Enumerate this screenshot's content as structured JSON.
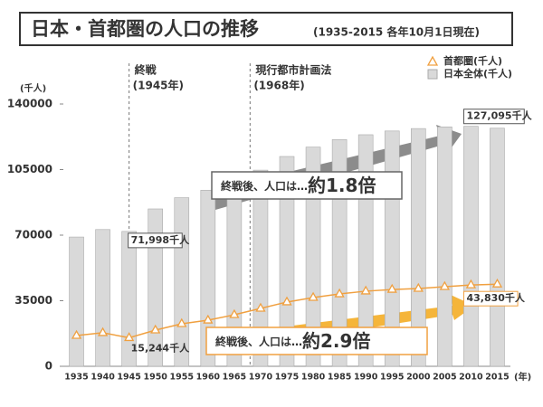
{
  "chart_data": {
    "type": "bar-line",
    "title": "日本・首都圏の人口の推移",
    "subtitle": "(1935-2015 各年10月1日現在)",
    "y_unit": "(千人)",
    "x_unit": "(年)",
    "categories": [
      "1935",
      "1940",
      "1945",
      "1950",
      "1955",
      "1960",
      "1965",
      "1970",
      "1975",
      "1980",
      "1985",
      "1990",
      "1995",
      "2000",
      "2005",
      "2010",
      "2015"
    ],
    "series": [
      {
        "name": "日本全体(千人)",
        "type": "bar",
        "color": "#d9d9d9",
        "values": [
          69000,
          73000,
          71998,
          84000,
          90000,
          94000,
          99000,
          104700,
          112000,
          117000,
          121000,
          123600,
          125600,
          126900,
          127800,
          128100,
          127095
        ],
        "value_labels": [
          null,
          null,
          "71,998千人",
          null,
          null,
          null,
          null,
          null,
          null,
          null,
          null,
          null,
          null,
          null,
          null,
          null,
          "127,095千人"
        ]
      },
      {
        "name": "首都圏(千人)",
        "type": "line",
        "color": "#f0a040",
        "values": [
          16400,
          17900,
          15244,
          19300,
          22700,
          24600,
          27500,
          30900,
          34300,
          36700,
          38600,
          40100,
          41000,
          41500,
          42500,
          43400,
          43830
        ],
        "value_labels": [
          null,
          null,
          "15,244千人",
          null,
          null,
          null,
          null,
          null,
          null,
          null,
          null,
          null,
          null,
          null,
          null,
          null,
          "43,830千人"
        ]
      }
    ],
    "ylim": [
      0,
      140000
    ],
    "yticks": [
      0,
      35000,
      70000,
      105000,
      140000
    ],
    "grid": false,
    "annotations": [
      {
        "label": "終戦",
        "sublabel": "(1945年)",
        "x": 1945
      },
      {
        "label": "現行都市計画法",
        "sublabel": "(1968年)",
        "x": 1968
      }
    ],
    "callouts": [
      {
        "text": "終戦後、人口は…",
        "emphasis": "約1.8倍"
      },
      {
        "text": "終戦後、人口は…",
        "emphasis": "約2.9倍"
      }
    ]
  }
}
